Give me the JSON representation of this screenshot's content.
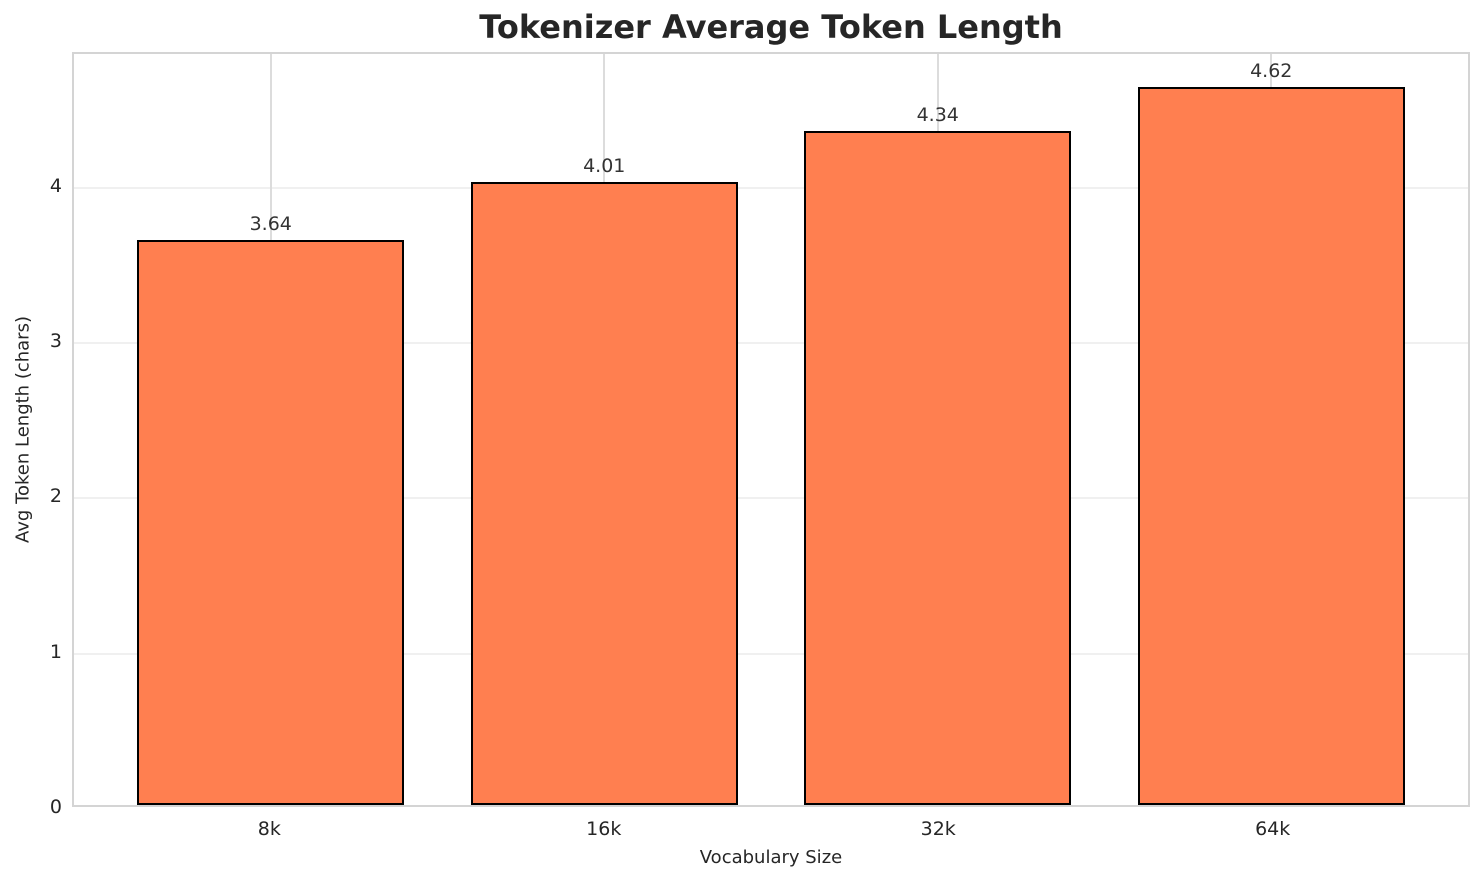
{
  "title": "Tokenizer Average Token Length",
  "chart_data": {
    "type": "bar",
    "categories": [
      "8k",
      "16k",
      "32k",
      "64k"
    ],
    "values": [
      3.64,
      4.01,
      4.34,
      4.62
    ],
    "value_labels": [
      "3.64",
      "4.01",
      "4.34",
      "4.62"
    ],
    "title": "Tokenizer Average Token Length",
    "xlabel": "Vocabulary Size",
    "ylabel": "Avg Token Length (chars)",
    "yticks": [
      0,
      1,
      2,
      3,
      4
    ],
    "ylim": [
      0,
      4.86
    ],
    "grid": "on",
    "legend": "none"
  },
  "colors": {
    "bar_fill": "#FF7F50",
    "bar_edge": "#000000",
    "grid_horizontal": "#f0f0f0",
    "grid_vertical": "#dcdcdc",
    "spine": "#d4d4d4",
    "text": "#262626"
  }
}
